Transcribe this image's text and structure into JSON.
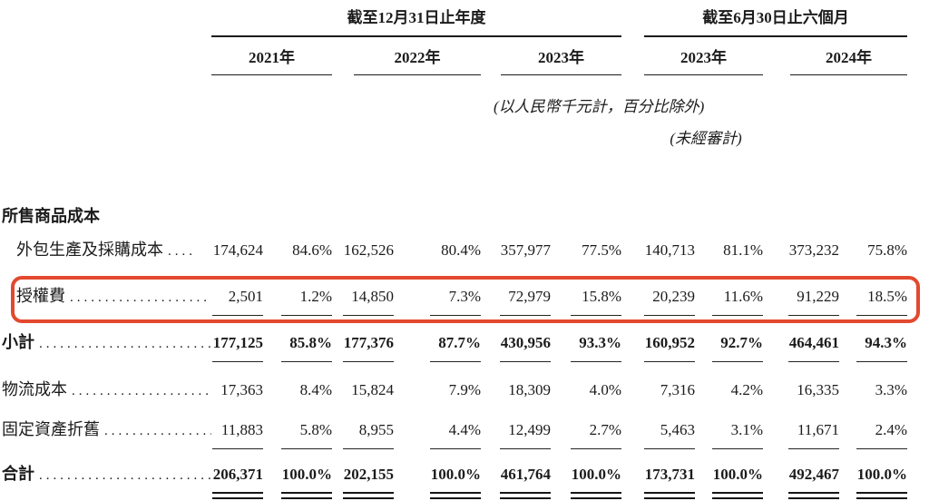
{
  "accent_color": "#e2492e",
  "header": {
    "annual_title": "截至12月31日止年度",
    "interim_title": "截至6月30日止六個月",
    "years": [
      "2021年",
      "2022年",
      "2023年",
      "2023年",
      "2024年"
    ],
    "units_note": "(以人民幣千元計，百分比除外)",
    "unaudited_note": "(未經審計)"
  },
  "rows": [
    {
      "label": "所售商品成本",
      "leader": "",
      "values": []
    },
    {
      "label": "外包生產及採購成本",
      "leader": "....",
      "values": [
        "174,624",
        "84.6%",
        "162,526",
        "80.4%",
        "357,977",
        "77.5%",
        "140,713",
        "81.1%",
        "373,232",
        "75.8%"
      ]
    },
    {
      "label": "授權費",
      "leader": "..........................",
      "values": [
        "2,501",
        "1.2%",
        "14,850",
        "7.3%",
        "72,979",
        "15.8%",
        "20,239",
        "11.6%",
        "91,229",
        "18.5%"
      ]
    },
    {
      "label": "小計",
      "leader": "..........................",
      "values": [
        "177,125",
        "85.8%",
        "177,376",
        "87.7%",
        "430,956",
        "93.3%",
        "160,952",
        "92.7%",
        "464,461",
        "94.3%"
      ]
    },
    {
      "label": "物流成本",
      "leader": "..........................",
      "values": [
        "17,363",
        "8.4%",
        "15,824",
        "7.9%",
        "18,309",
        "4.0%",
        "7,316",
        "4.2%",
        "16,335",
        "3.3%"
      ]
    },
    {
      "label": "固定資產折舊",
      "leader": "..........................",
      "values": [
        "11,883",
        "5.8%",
        "8,955",
        "4.4%",
        "12,499",
        "2.7%",
        "5,463",
        "3.1%",
        "11,671",
        "2.4%"
      ]
    },
    {
      "label": "合計",
      "leader": "..........................",
      "values": [
        "206,371",
        "100.0%",
        "202,155",
        "100.0%",
        "461,764",
        "100.0%",
        "173,731",
        "100.0%",
        "492,467",
        "100.0%"
      ]
    }
  ]
}
